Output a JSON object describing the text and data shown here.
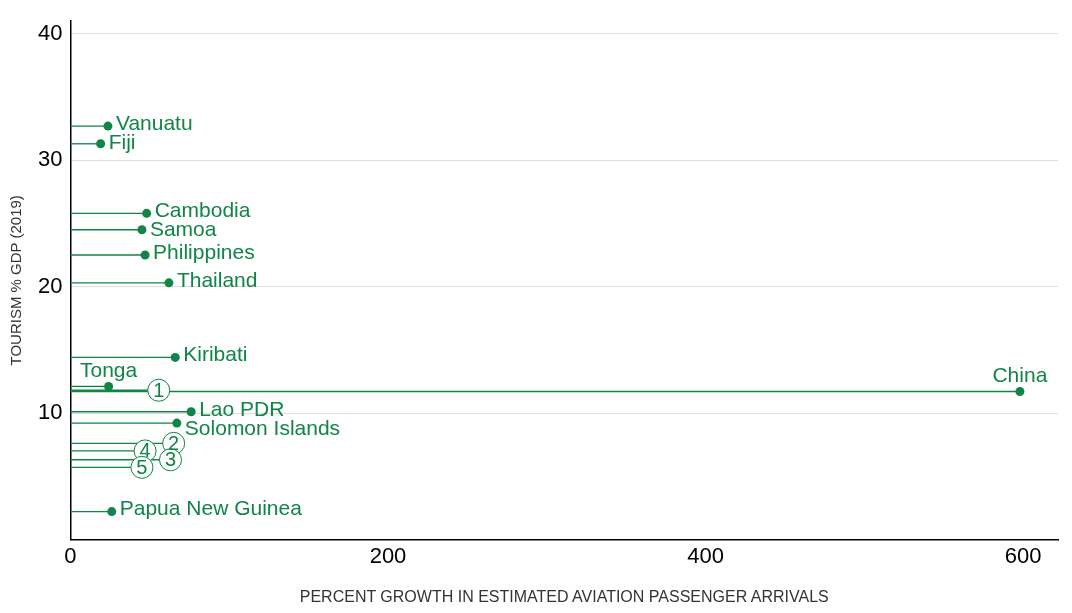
{
  "chart_data": {
    "type": "lollipop",
    "orientation": "horizontal",
    "xlabel": "PERCENT GROWTH IN ESTIMATED AVIATION PASSENGER ARRIVALS",
    "ylabel": "TOURISM % GDP (2019)",
    "xlim": [
      0,
      622
    ],
    "xticks": [
      0,
      200,
      400,
      600
    ],
    "ylim": [
      0,
      41
    ],
    "yticks": [
      10,
      20,
      30,
      40
    ],
    "grid": "y",
    "legend": false,
    "marker": "circle",
    "series": [
      {
        "color": "#118447",
        "x": [
          32.7,
          31.3,
          25.8,
          24.5,
          22.5,
          20.3,
          14.4,
          12.1,
          11.7,
          10.1,
          9.2,
          2.2
        ],
        "values": [
          23.6,
          19,
          48,
          45,
          47,
          62,
          66,
          24,
          598,
          76,
          67,
          26
        ],
        "value_labels": [
          "Vanuatu",
          "Fiji",
          "Cambodia",
          "Samoa",
          "Philippines",
          "Thailand",
          "Kiribati",
          "Tonga",
          "China",
          "Lao PDR",
          "Solomon Islands",
          "Papua New Guinea"
        ]
      },
      {
        "color": "#118447",
        "x": [
          11.8,
          7.6,
          6.3,
          7.0,
          5.7
        ],
        "values": [
          55.6,
          65,
          63,
          47,
          45
        ]
      }
    ],
    "annotations": [
      {
        "text": "1",
        "x": 55.6,
        "y": 11.8
      },
      {
        "text": "2",
        "x": 65,
        "y": 7.6
      },
      {
        "text": "3",
        "x": 63,
        "y": 6.3
      },
      {
        "text": "4",
        "x": 47,
        "y": 7.0
      },
      {
        "text": "5",
        "x": 45,
        "y": 5.7
      }
    ]
  }
}
